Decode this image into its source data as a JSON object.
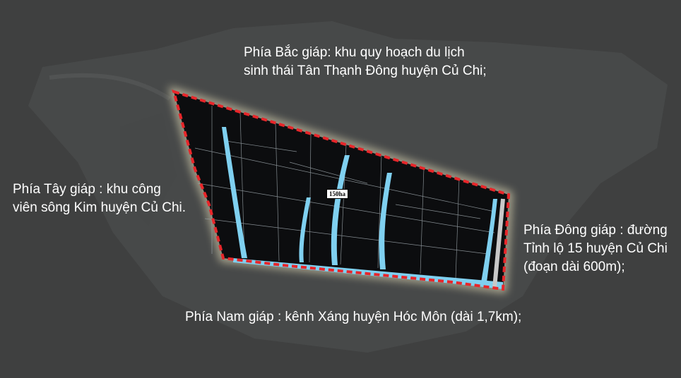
{
  "map": {
    "area_label": "150ha",
    "colors": {
      "background": "#3f4040",
      "land": "#4d4f4f",
      "parcel_fill": "#0c0d0f",
      "parcel_lines": "#9aa3a8",
      "boundary": "#e8262a",
      "glow": "#d9d2b0",
      "water": "#7fd0f0"
    }
  },
  "borders": {
    "north": {
      "line1": "Phía Bắc giáp: khu quy hoạch du lịch",
      "line2": "sinh thái Tân Thạnh Đông huyện Củ Chi;"
    },
    "west": {
      "line1": "Phía Tây giáp : khu công",
      "line2": "viên sông Kim huyện Củ Chi."
    },
    "east": {
      "line1": "Phía Đông giáp : đường",
      "line2": "Tỉnh lộ 15 huyện Củ Chi",
      "line3": "(đoạn dài 600m);"
    },
    "south": {
      "line1": "Phía Nam giáp : kênh Xáng huyện Hóc Môn (dài 1,7km);"
    }
  }
}
